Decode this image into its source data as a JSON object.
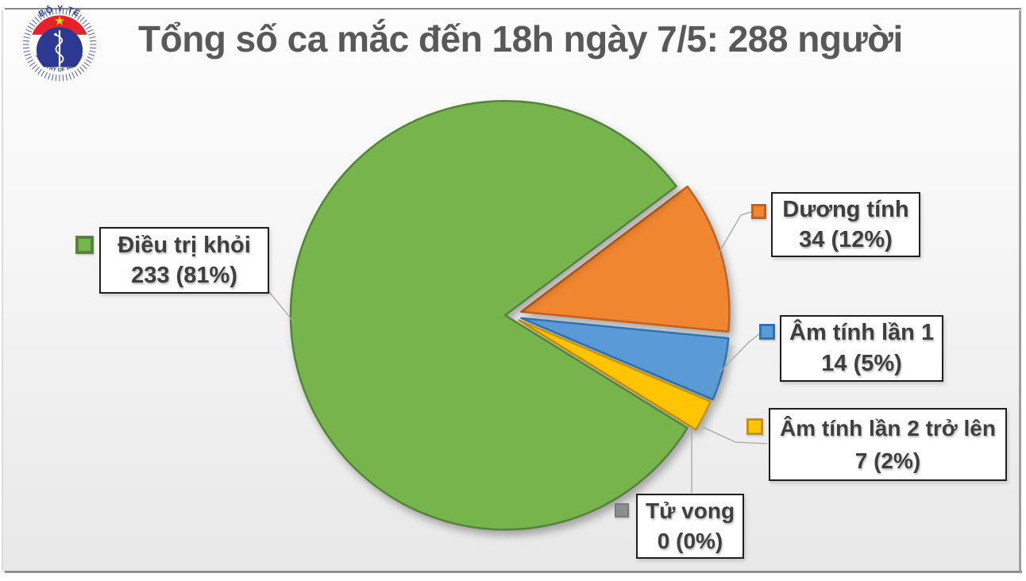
{
  "header": {
    "title": "Tổng số ca mắc đến 18h ngày 7/5: 288 người"
  },
  "logo": {
    "name": "Ministry of Health Vietnam emblem",
    "top_text": "BỘ Y TẾ",
    "bottom_text": "MINISTRY OF HEALTH",
    "colors": {
      "navy": "#2B3990",
      "red": "#E62129",
      "star_yellow": "#FFD100",
      "staff_white": "#FFFFFF"
    }
  },
  "chart_data": {
    "type": "pie",
    "title": "Tổng số ca mắc đến 18h ngày 7/5: 288 người",
    "total": 288,
    "unit": "người",
    "as_of": "18h ngày 7/5",
    "slices": [
      {
        "label": "Điều trị khỏi",
        "value": 233,
        "percent": 81,
        "value_label": "233 (81%)",
        "color": "#76B44C",
        "border_color": "#55833A"
      },
      {
        "label": "Dương tính",
        "value": 34,
        "percent": 12,
        "value_label": "34 (12%)",
        "color": "#F0862F",
        "border_color": "#C2621C"
      },
      {
        "label": "Âm tính lần 1",
        "value": 14,
        "percent": 5,
        "value_label": "14 (5%)",
        "color": "#5B9BD5",
        "border_color": "#2E74B5"
      },
      {
        "label": "Âm tính lần 2 trở lên",
        "value": 7,
        "percent": 2,
        "value_label": "7 (2%)",
        "color": "#FFC504",
        "border_color": "#C79500"
      },
      {
        "label": "Tử vong",
        "value": 0,
        "percent": 0,
        "value_label": "0 (0%)",
        "color": "#8C8C8C",
        "border_color": "#7A7A7A"
      }
    ],
    "legend_position": "callout labels with leader lines",
    "start_angle_deg": 53,
    "clockwise": true,
    "draw_order": [
      1,
      2,
      3,
      4,
      0
    ],
    "exploded": true
  }
}
